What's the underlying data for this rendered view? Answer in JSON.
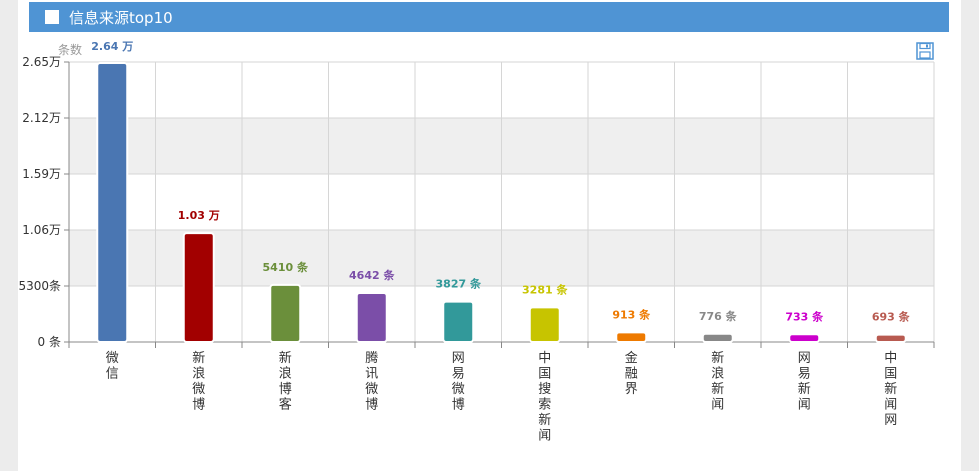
{
  "header": {
    "title": "信息来源top10"
  },
  "colors": {
    "header_bg": "#4f94d4",
    "band": "#efefef",
    "grid": "#d6d6d6",
    "axis_text": "#333333"
  },
  "icons": {
    "save": "save-disk-icon"
  },
  "chart_data": {
    "type": "bar",
    "unit_label": "条数",
    "categories": [
      "微信",
      "新浪微博",
      "新浪博客",
      "腾讯微博",
      "网易微博",
      "中国搜索新闻",
      "金融界",
      "新浪新闻",
      "网易新闻",
      "中国新闻网"
    ],
    "values": [
      26400,
      10300,
      5410,
      4642,
      3827,
      3281,
      913,
      776,
      733,
      693
    ],
    "data_labels": [
      "2.64 万",
      "1.03 万",
      "5410 条",
      "4642 条",
      "3827 条",
      "3281 条",
      "913 条",
      "776 条",
      "733 条",
      "693 条"
    ],
    "colors": [
      "#4a76b2",
      "#a20000",
      "#6b8f3b",
      "#7b4ea8",
      "#32999a",
      "#c7c400",
      "#ee7a00",
      "#888888",
      "#cc00cc",
      "#b85a50"
    ],
    "y_ticks": [
      0,
      5300,
      10600,
      15900,
      21200,
      26500
    ],
    "y_tick_labels": [
      "0 条",
      "5300条",
      "1.06万",
      "1.59万",
      "2.12万",
      "2.65万"
    ],
    "ylim": [
      0,
      26500
    ],
    "grid": true,
    "legend": "none"
  }
}
